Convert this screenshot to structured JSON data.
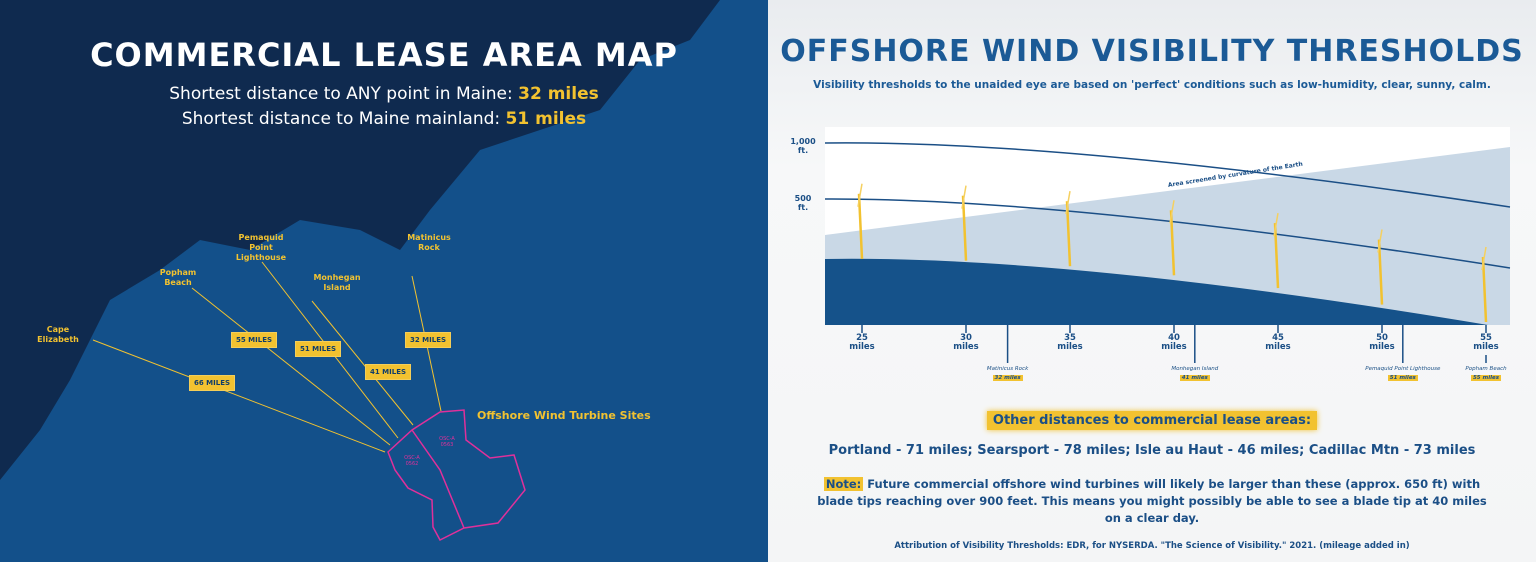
{
  "left": {
    "title": "COMMERCIAL LEASE AREA MAP",
    "line1_prefix": "Shortest distance to ANY point in Maine: ",
    "line1_value": "32 miles",
    "line2_prefix": "Shortest distance to Maine mainland: ",
    "line2_value": "51 miles",
    "places": [
      {
        "name": "Cape Elizabeth",
        "miles": "66 MILES"
      },
      {
        "name": "Popham Beach",
        "miles": "55 MILES"
      },
      {
        "name": "Pemaquid Point Lighthouse",
        "miles": "51 MILES"
      },
      {
        "name": "Monhegan Island",
        "miles": "41 MILES"
      },
      {
        "name": "Matinicus Rock",
        "miles": "32 MILES"
      }
    ],
    "sites_label": "Offshore Wind Turbine Sites",
    "site_a": "OSC-A 0562",
    "site_b": "OSC-A 0563",
    "colors": {
      "sea": "#13508a",
      "land": "#0f2a4f",
      "accent": "#f2c230",
      "sites": "#e0309b"
    }
  },
  "right": {
    "title": "OFFSHORE WIND VISIBILITY THRESHOLDS",
    "subtitle": "Visibility thresholds to the unaided eye are based on 'perfect' conditions such as low-humidity, clear, sunny, calm.",
    "y_labels": [
      {
        "v": "1,000",
        "u": "ft."
      },
      {
        "v": "500",
        "u": "ft."
      }
    ],
    "screened_label": "Area screened by curvature of the Earth",
    "x_ticks": [
      {
        "v": "25",
        "u": "miles"
      },
      {
        "v": "30",
        "u": "miles"
      },
      {
        "v": "35",
        "u": "miles"
      },
      {
        "v": "40",
        "u": "miles"
      },
      {
        "v": "45",
        "u": "miles"
      },
      {
        "v": "50",
        "u": "miles"
      },
      {
        "v": "55",
        "u": "miles"
      }
    ],
    "landmarks": [
      {
        "name": "Matinicus Rock",
        "miles": "32 miles"
      },
      {
        "name": "Monhegan Island",
        "miles": "41 miles"
      },
      {
        "name": "Pemaquid Point Lighthouse",
        "miles": "51 miles"
      },
      {
        "name": "Popham Beach",
        "miles": "55 miles"
      }
    ],
    "other_heading": "Other distances to commercial lease areas:",
    "other_distances": "Portland - 71 miles; Searsport - 78 miles; Isle au Haut - 46 miles; Cadillac Mtn - 73 miles",
    "note_label": "Note:",
    "note_text": " Future commercial offshore wind turbines will likely be larger than these (approx. 650 ft) with blade tips reaching over 900 feet. This means you might possibly be able to see a blade tip at 40 miles on a clear day.",
    "attribution": "Attribution of Visibility Thresholds: EDR, for NYSERDA. \"The Science of Visibility.\" 2021. (mileage added in)",
    "colors": {
      "earth": "#15528a",
      "screened": "#c9d8e6",
      "line": "#1b4f86",
      "turbine": "#f2c230"
    }
  }
}
